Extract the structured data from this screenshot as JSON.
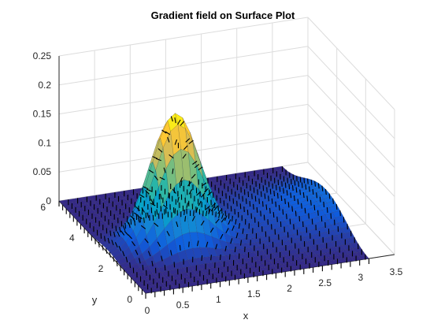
{
  "chart_data": {
    "type": "surface",
    "title": "Gradient field on Surface Plot",
    "xlabel": "x",
    "ylabel": "y",
    "zlabel": "",
    "xlim": [
      0,
      3.5
    ],
    "ylim": [
      0,
      6
    ],
    "zlim": [
      0,
      0.25
    ],
    "x_ticks": [
      "0",
      "0.5",
      "1",
      "1.5",
      "2",
      "2.5",
      "3",
      "3.5"
    ],
    "y_ticks": [
      "0",
      "2",
      "4",
      "6"
    ],
    "z_ticks": [
      "0",
      "0.05",
      "0.1",
      "0.15",
      "0.2",
      "0.25"
    ],
    "grid": true,
    "colormap": "parula",
    "surface": {
      "x_range": [
        0,
        3.14
      ],
      "y_range": [
        0,
        6
      ],
      "peak": {
        "x": 0.94,
        "y": 2.6,
        "z": 0.22
      },
      "ridge_height_at_x_max": 0.04
    },
    "overlay": "gradient arrows (black)"
  },
  "colors": {
    "axis": "#262626",
    "grid": "#dcdcdc",
    "arrows": "#000000",
    "colormap_stops": [
      "#352a87",
      "#0f5cdd",
      "#1481d6",
      "#06a4ca",
      "#2eb7a4",
      "#87bf77",
      "#d1bb59",
      "#fec832",
      "#f9fb0e"
    ]
  }
}
